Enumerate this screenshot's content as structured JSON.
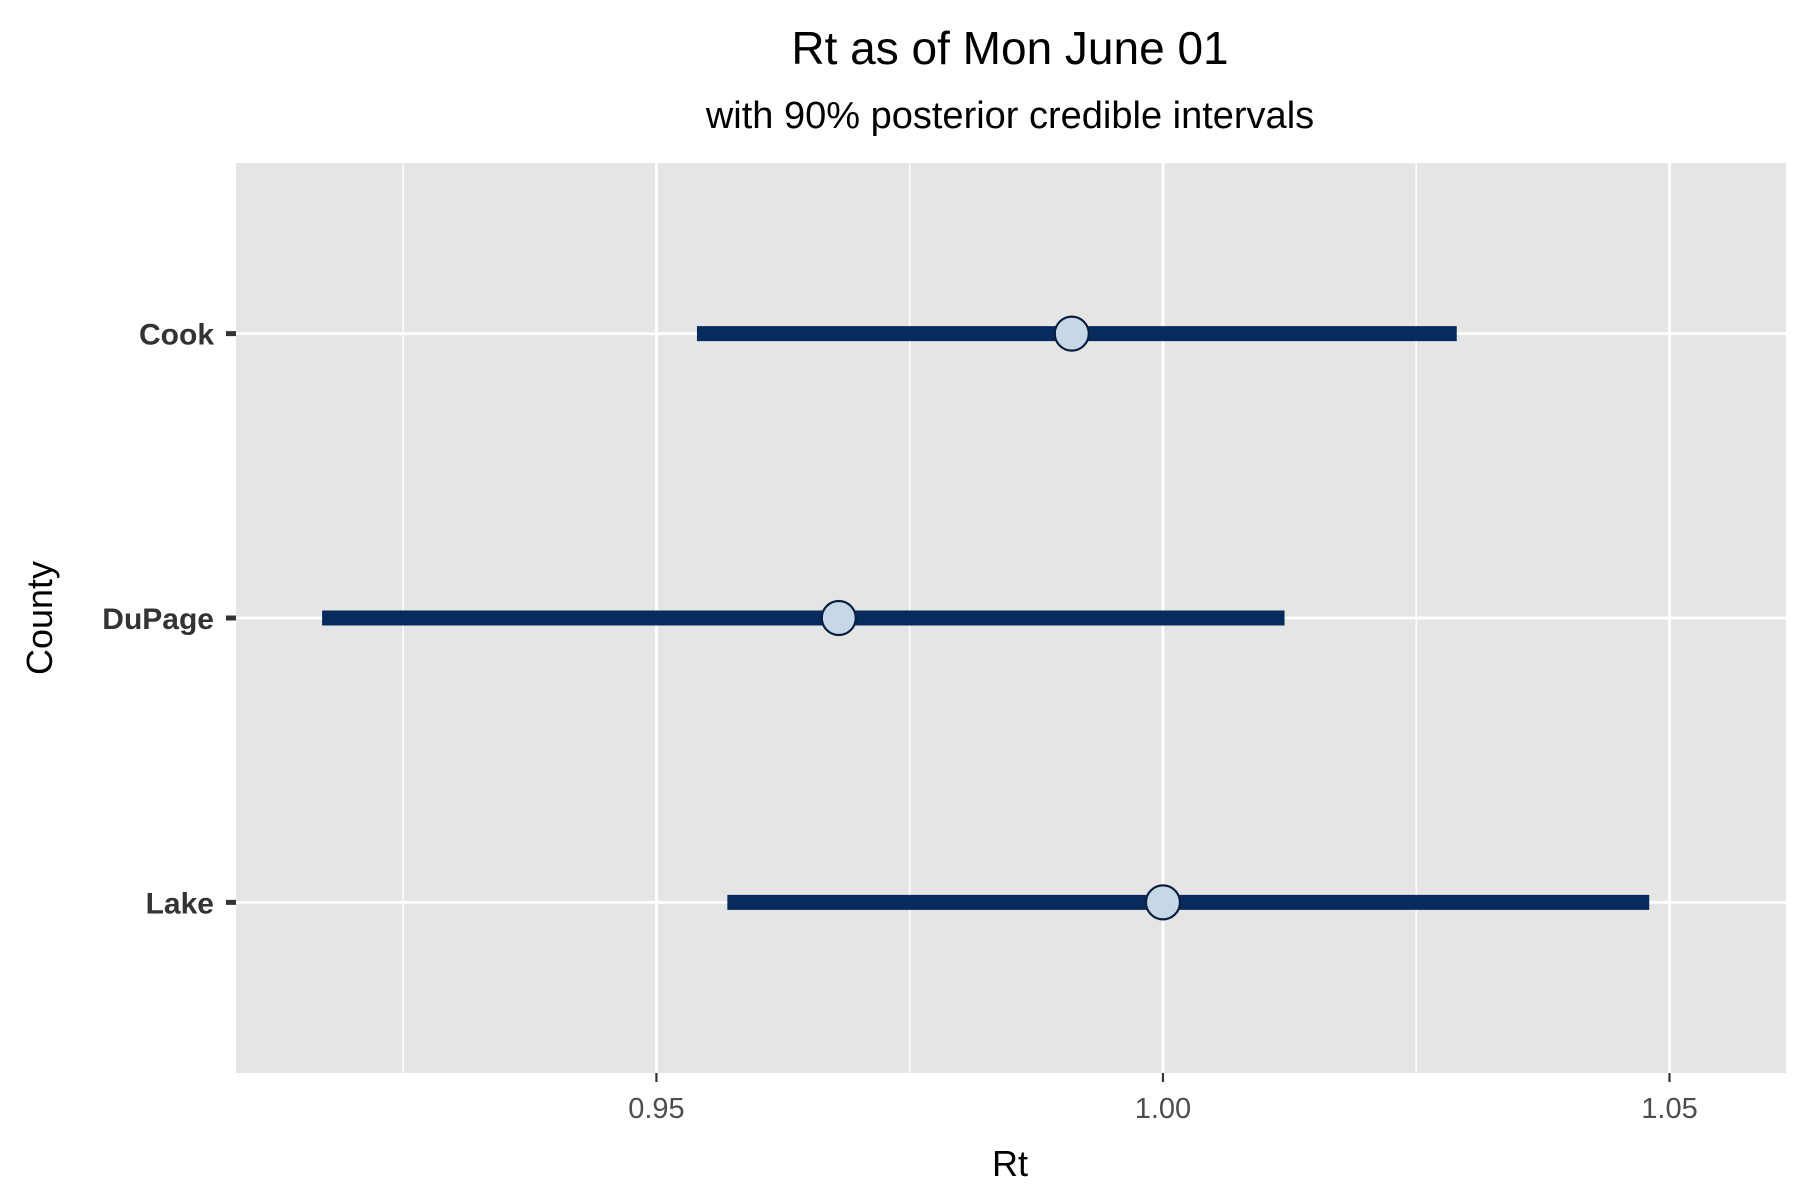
{
  "chart_data": {
    "type": "interval",
    "title": "Rt as of Mon June 01",
    "subtitle": "with 90% posterior credible intervals",
    "xlabel": "Rt",
    "ylabel": "County",
    "xlim": [
      0.9085,
      1.0615
    ],
    "x_major_ticks": [
      0.95,
      1.0,
      1.05
    ],
    "x_tick_labels": [
      "0.95",
      "1.00",
      "1.05"
    ],
    "x_minor_ticks": [
      0.925,
      0.975,
      1.025
    ],
    "grid": true,
    "categories": [
      "Cook",
      "DuPage",
      "Lake"
    ],
    "points": [
      {
        "county": "Cook",
        "estimate": 0.991,
        "lower": 0.954,
        "upper": 1.029
      },
      {
        "county": "DuPage",
        "estimate": 0.968,
        "lower": 0.917,
        "upper": 1.012
      },
      {
        "county": "Lake",
        "estimate": 1.0,
        "lower": 0.957,
        "upper": 1.048
      }
    ],
    "colors": {
      "panel": "#e5e5e5",
      "grid": "#ffffff",
      "interval": "#062b5c",
      "point_fill": "#c6d8e7",
      "point_stroke": "#0a1f3f"
    }
  }
}
